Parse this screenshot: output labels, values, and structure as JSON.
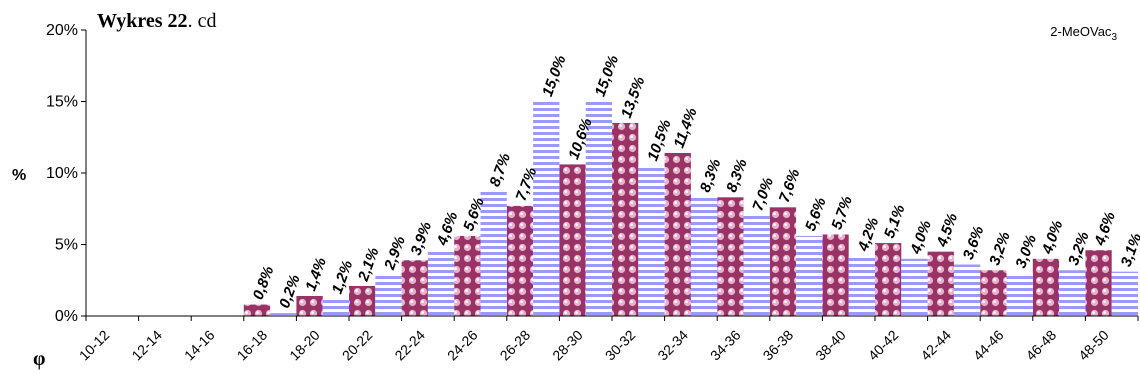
{
  "chart_data": {
    "type": "bar",
    "title": "Wykres 22",
    "title_suffix": ". cd",
    "series_label_main": "2-MeOVac",
    "series_label_sub": "3",
    "xlabel": "φ",
    "ylabel": "%",
    "ylim": [
      0,
      20
    ],
    "y_ticks": [
      "0%",
      "5%",
      "10%",
      "15%",
      "20%"
    ],
    "grid": false,
    "categories": [
      "10-12",
      "12-14",
      "14-16",
      "16-18",
      "18-20",
      "20-22",
      "22-24",
      "24-26",
      "26-28",
      "28-30",
      "30-32",
      "32-34",
      "34-36",
      "36-38",
      "38-40",
      "40-42",
      "42-44",
      "44-46",
      "46-48",
      "48-50"
    ],
    "series": [
      {
        "fill": "#993366",
        "pattern": "dots",
        "values": [
          null,
          null,
          null,
          0.8,
          1.4,
          2.1,
          3.9,
          5.6,
          7.7,
          10.6,
          13.5,
          11.4,
          8.3,
          7.6,
          5.7,
          5.1,
          4.5,
          3.2,
          4.0,
          4.6
        ],
        "labels": [
          "",
          "",
          "",
          "0,8%",
          "1,4%",
          "2,1%",
          "3,9%",
          "5,6%",
          "7,7%",
          "10,6%",
          "13,5%",
          "11,4%",
          "8,3%",
          "7,6%",
          "5,7%",
          "5,1%",
          "4,5%",
          "3,2%",
          "4,0%",
          "4,6%"
        ]
      },
      {
        "fill": "#9999ff",
        "pattern": "horizontal-stripes",
        "values": [
          null,
          null,
          null,
          0.2,
          1.2,
          2.9,
          4.6,
          8.7,
          15.0,
          15.0,
          10.5,
          8.3,
          7.0,
          5.6,
          4.2,
          4.0,
          3.6,
          3.0,
          3.2,
          3.1
        ],
        "labels": [
          "",
          "",
          "",
          "0,2%",
          "1,2%",
          "2,9%",
          "4,6%",
          "8,7%",
          "15,0%",
          "15,0%",
          "10,5%",
          "8,3%",
          "7,0%",
          "5,6%",
          "4,2%",
          "4,0%",
          "3,6%",
          "3,0%",
          "3,2%",
          "3,1%"
        ]
      }
    ]
  }
}
